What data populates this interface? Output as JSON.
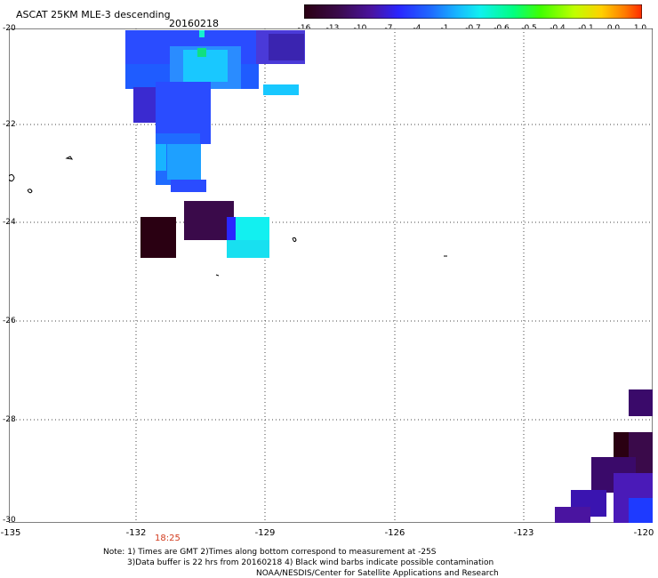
{
  "title": "ASCAT 25KM MLE-3 descending",
  "date": "20160218",
  "colorbar": {
    "ticks": [
      "-16",
      "-13",
      "-10",
      "-7",
      "-4",
      "-1",
      "-0.7",
      "-0.6",
      "-0.5",
      "-0.4",
      "-0.1",
      "0.0",
      "1.0"
    ],
    "colors": [
      "#2a0012",
      "#3a0a4a",
      "#4a14a0",
      "#2a26ff",
      "#1e6eff",
      "#18b4ff",
      "#10f0f0",
      "#00ff80",
      "#40ff00",
      "#c0ff00",
      "#ffd000",
      "#ff7a00",
      "#ff2a00"
    ]
  },
  "axes": {
    "lat_labels": [
      "-20",
      "-22",
      "-24",
      "-26",
      "-28",
      "-30"
    ],
    "lon_labels": [
      "-135",
      "-132",
      "-129",
      "-126",
      "-123",
      "-120"
    ]
  },
  "time_label": "18:25",
  "notes": [
    "Note: 1) Times are GMT 2)Times along bottom correspond to measurement at -25S",
    "3)Data buffer is 22 hrs from 20160218 4) Black wind barbs indicate possible contamination",
    "NOAA/NESDIS/Center for Satellite Applications and Research"
  ]
}
